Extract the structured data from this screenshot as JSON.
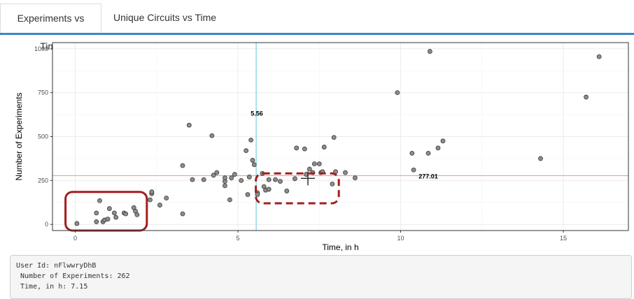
{
  "tabs": [
    {
      "label": "Experiments vs Time",
      "active": true
    },
    {
      "label": "Unique Circuits vs Time",
      "active": false
    }
  ],
  "colors": {
    "tab_underline": "#3c87c6",
    "vline": "#5bc8d8",
    "hline": "#e89a9a",
    "point_fill": "#8c8c8c",
    "annotation_box": "#a51c1c"
  },
  "chart_data": {
    "type": "scatter",
    "xlabel": "Time, in h",
    "ylabel": "Number of Experiments",
    "xlim": [
      -0.7,
      17.0
    ],
    "ylim": [
      -35,
      1035
    ],
    "xticks": [
      0,
      5,
      10,
      15
    ],
    "xtick_labels": [
      "0",
      "5",
      "10",
      "15"
    ],
    "yticks": [
      0,
      250,
      500,
      750,
      1000
    ],
    "ytick_labels": [
      "0",
      "250",
      "500",
      "750",
      "1000"
    ],
    "grid": true,
    "vline": {
      "x": 5.56,
      "label": "5.56"
    },
    "hline": {
      "y": 277.01,
      "label": "277.01"
    },
    "crosshair": {
      "x": 7.15,
      "y": 262
    },
    "points": [
      {
        "x": 0.05,
        "y": 5
      },
      {
        "x": 0.65,
        "y": 15
      },
      {
        "x": 0.65,
        "y": 65
      },
      {
        "x": 0.75,
        "y": 135
      },
      {
        "x": 0.85,
        "y": 15
      },
      {
        "x": 0.9,
        "y": 25
      },
      {
        "x": 1.0,
        "y": 30
      },
      {
        "x": 1.05,
        "y": 90
      },
      {
        "x": 1.2,
        "y": 65
      },
      {
        "x": 1.25,
        "y": 40
      },
      {
        "x": 1.5,
        "y": 65
      },
      {
        "x": 1.55,
        "y": 60
      },
      {
        "x": 1.8,
        "y": 95
      },
      {
        "x": 1.85,
        "y": 75
      },
      {
        "x": 1.9,
        "y": 55
      },
      {
        "x": 2.3,
        "y": 140
      },
      {
        "x": 2.35,
        "y": 175
      },
      {
        "x": 2.35,
        "y": 185
      },
      {
        "x": 2.6,
        "y": 110
      },
      {
        "x": 2.8,
        "y": 150
      },
      {
        "x": 3.3,
        "y": 335
      },
      {
        "x": 3.3,
        "y": 60
      },
      {
        "x": 3.5,
        "y": 565
      },
      {
        "x": 3.6,
        "y": 255
      },
      {
        "x": 3.95,
        "y": 255
      },
      {
        "x": 4.2,
        "y": 505
      },
      {
        "x": 4.25,
        "y": 280
      },
      {
        "x": 4.35,
        "y": 295
      },
      {
        "x": 4.6,
        "y": 245
      },
      {
        "x": 4.6,
        "y": 265
      },
      {
        "x": 4.6,
        "y": 220
      },
      {
        "x": 4.75,
        "y": 140
      },
      {
        "x": 4.8,
        "y": 265
      },
      {
        "x": 4.9,
        "y": 285
      },
      {
        "x": 5.1,
        "y": 250
      },
      {
        "x": 5.25,
        "y": 420
      },
      {
        "x": 5.3,
        "y": 170
      },
      {
        "x": 5.35,
        "y": 270
      },
      {
        "x": 5.4,
        "y": 480
      },
      {
        "x": 5.45,
        "y": 365
      },
      {
        "x": 5.5,
        "y": 340
      },
      {
        "x": 5.6,
        "y": 180
      },
      {
        "x": 5.6,
        "y": 170
      },
      {
        "x": 5.75,
        "y": 290
      },
      {
        "x": 5.8,
        "y": 215
      },
      {
        "x": 5.85,
        "y": 195
      },
      {
        "x": 5.95,
        "y": 200
      },
      {
        "x": 5.95,
        "y": 255
      },
      {
        "x": 6.15,
        "y": 255
      },
      {
        "x": 6.3,
        "y": 245
      },
      {
        "x": 6.5,
        "y": 190
      },
      {
        "x": 6.75,
        "y": 260
      },
      {
        "x": 6.8,
        "y": 435
      },
      {
        "x": 7.05,
        "y": 430
      },
      {
        "x": 7.1,
        "y": 285
      },
      {
        "x": 7.2,
        "y": 315
      },
      {
        "x": 7.3,
        "y": 295
      },
      {
        "x": 7.35,
        "y": 345
      },
      {
        "x": 7.5,
        "y": 345
      },
      {
        "x": 7.55,
        "y": 295
      },
      {
        "x": 7.6,
        "y": 300
      },
      {
        "x": 7.65,
        "y": 440
      },
      {
        "x": 7.95,
        "y": 495
      },
      {
        "x": 7.9,
        "y": 230
      },
      {
        "x": 8.0,
        "y": 300
      },
      {
        "x": 8.3,
        "y": 295
      },
      {
        "x": 8.6,
        "y": 265
      },
      {
        "x": 9.9,
        "y": 750
      },
      {
        "x": 10.35,
        "y": 405
      },
      {
        "x": 10.4,
        "y": 310
      },
      {
        "x": 10.85,
        "y": 405
      },
      {
        "x": 10.9,
        "y": 985
      },
      {
        "x": 11.15,
        "y": 435
      },
      {
        "x": 11.3,
        "y": 475
      },
      {
        "x": 14.3,
        "y": 375
      },
      {
        "x": 15.7,
        "y": 725
      },
      {
        "x": 16.1,
        "y": 955
      }
    ]
  },
  "tooltip": {
    "line1": "User Id: nFlwwryDhB",
    "line2": " Number of Experiments: 262",
    "line3": " Time, in h: 7.15"
  }
}
